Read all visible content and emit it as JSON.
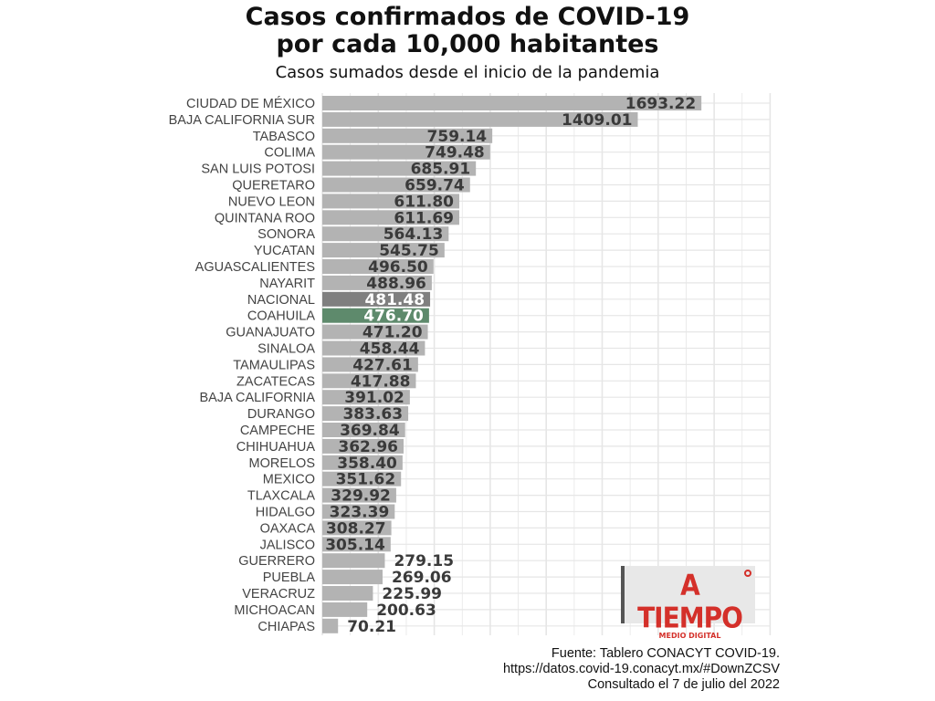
{
  "header": {
    "title_line1": "Casos confirmados de COVID-19",
    "title_line2": "por cada 10,000 habitantes",
    "subtitle": "Casos sumados desde el inicio de la pandemia"
  },
  "source": {
    "line1": "Fuente: Tablero CONACYT COVID-19.",
    "line2": "https://datos.covid-19.conacyt.mx/#DownZCSV",
    "line3": "Consultado el 7 de julio del 2022"
  },
  "logo": {
    "text": "A TIEMPO",
    "subtext": "MEDIO DIGITAL"
  },
  "colors": {
    "default_bar": "#b3b3b3",
    "nacional_bar": "#7f7f7f",
    "coahuila_bar": "#5e8a6c",
    "label_dark": "#3a3a3a",
    "label_light": "#ffffff",
    "grid": "#e6e6e6"
  },
  "chart_data": {
    "type": "bar",
    "orientation": "horizontal",
    "xlim": [
      0,
      2000
    ],
    "grid": true,
    "categories": [
      "CIUDAD DE MÉXICO",
      "BAJA CALIFORNIA SUR",
      "TABASCO",
      "COLIMA",
      "SAN LUIS POTOSI",
      "QUERETARO",
      "NUEVO LEON",
      "QUINTANA ROO",
      "SONORA",
      "YUCATAN",
      "AGUASCALIENTES",
      "NAYARIT",
      "NACIONAL",
      "COAHUILA",
      "GUANAJUATO",
      "SINALOA",
      "TAMAULIPAS",
      "ZACATECAS",
      "BAJA CALIFORNIA",
      "DURANGO",
      "CAMPECHE",
      "CHIHUAHUA",
      "MORELOS",
      "MEXICO",
      "TLAXCALA",
      "HIDALGO",
      "OAXACA",
      "JALISCO",
      "GUERRERO",
      "PUEBLA",
      "VERACRUZ",
      "MICHOACAN",
      "CHIAPAS"
    ],
    "values": [
      1693.22,
      1409.01,
      759.14,
      749.48,
      685.91,
      659.74,
      611.8,
      611.69,
      564.13,
      545.75,
      496.5,
      488.96,
      481.48,
      476.7,
      471.2,
      458.44,
      427.61,
      417.88,
      391.02,
      383.63,
      369.84,
      362.96,
      358.4,
      351.62,
      329.92,
      323.39,
      308.27,
      305.14,
      279.15,
      269.06,
      225.99,
      200.63,
      70.21
    ],
    "value_labels": [
      "1693.22",
      "1409.01",
      "759.14",
      "749.48",
      "685.91",
      "659.74",
      "611.80",
      "611.69",
      "564.13",
      "545.75",
      "496.50",
      "488.96",
      "481.48",
      "476.70",
      "471.20",
      "458.44",
      "427.61",
      "417.88",
      "391.02",
      "383.63",
      "369.84",
      "362.96",
      "358.40",
      "351.62",
      "329.92",
      "323.39",
      "308.27",
      "305.14",
      "279.15",
      "269.06",
      "225.99",
      "200.63",
      "70.21"
    ],
    "highlight": {
      "NACIONAL": "nacional_bar",
      "COAHUILA": "coahuila_bar"
    }
  }
}
